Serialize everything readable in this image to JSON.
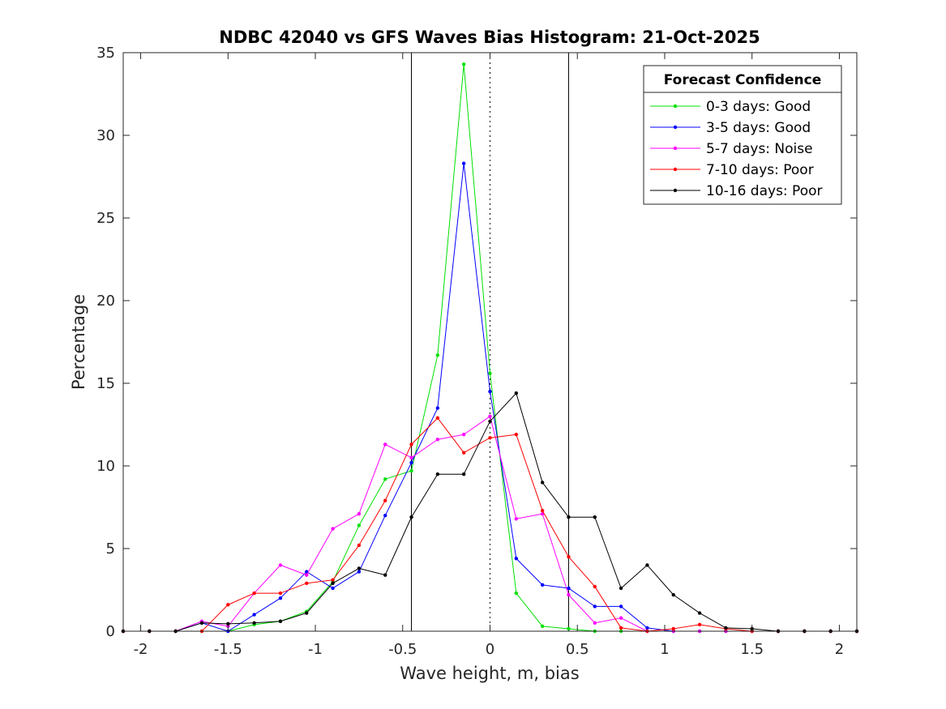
{
  "chart_data": {
    "type": "line",
    "title": "NDBC 42040 vs GFS Waves Bias Histogram: 21-Oct-2025",
    "xlabel": "Wave height, m, bias",
    "ylabel": "Percentage",
    "xlim": [
      -2.1,
      2.1
    ],
    "ylim": [
      0,
      35
    ],
    "xticks": [
      -2,
      -1.5,
      -1,
      -0.5,
      0,
      0.5,
      1,
      1.5,
      2
    ],
    "xtick_labels": [
      "-2",
      "-1.5",
      "-1",
      "-0.5",
      "0",
      "0.5",
      "1",
      "1.5",
      "2"
    ],
    "yticks": [
      0,
      5,
      10,
      15,
      20,
      25,
      30,
      35
    ],
    "ytick_labels": [
      "0",
      "5",
      "10",
      "15",
      "20",
      "25",
      "30",
      "35"
    ],
    "reference_lines": [
      {
        "x": -0.45,
        "style": "solid"
      },
      {
        "x": 0,
        "style": "dotted"
      },
      {
        "x": 0.45,
        "style": "solid"
      }
    ],
    "legend_title": "Forecast Confidence",
    "legend_position": "top-right",
    "x": [
      -2.1,
      -1.95,
      -1.8,
      -1.65,
      -1.5,
      -1.35,
      -1.2,
      -1.05,
      -0.9,
      -0.75,
      -0.6,
      -0.45,
      -0.3,
      -0.15,
      0,
      0.15,
      0.3,
      0.45,
      0.6,
      0.75,
      0.9,
      1.05,
      1.2,
      1.35,
      1.5,
      1.65,
      1.8,
      1.95,
      2.1
    ],
    "series": [
      {
        "name": "0-3 days: Good",
        "color": "#00e000",
        "values": [
          0,
          0,
          0,
          0,
          0,
          0.4,
          0.6,
          1.2,
          3.0,
          6.4,
          9.2,
          9.7,
          16.7,
          34.3,
          15.6,
          2.3,
          0.3,
          0.15,
          0,
          0,
          0,
          0,
          0,
          0,
          0,
          0,
          0,
          0,
          0
        ]
      },
      {
        "name": "3-5 days: Good",
        "color": "#0000ff",
        "values": [
          0,
          0,
          0,
          0.5,
          0,
          1.0,
          2.0,
          3.6,
          2.6,
          3.6,
          7.0,
          10.2,
          13.5,
          28.3,
          14.5,
          4.4,
          2.8,
          2.6,
          1.5,
          1.5,
          0.2,
          0,
          0,
          0,
          0,
          0,
          0,
          0,
          0
        ]
      },
      {
        "name": "5-7 days: Noise",
        "color": "#ff00ff",
        "values": [
          0,
          0,
          0,
          0.6,
          0.3,
          2.3,
          4.0,
          3.4,
          6.2,
          7.1,
          11.3,
          10.5,
          11.6,
          11.9,
          13.0,
          6.8,
          7.1,
          2.2,
          0.5,
          0.8,
          0,
          0,
          0,
          0,
          0,
          0,
          0,
          0,
          0
        ]
      },
      {
        "name": "7-10 days: Poor",
        "color": "#ff0000",
        "values": [
          0,
          0,
          0,
          0,
          1.6,
          2.3,
          2.3,
          2.9,
          3.1,
          5.2,
          7.9,
          11.3,
          12.9,
          10.8,
          11.7,
          11.9,
          7.3,
          4.5,
          2.7,
          0.2,
          0,
          0.15,
          0.4,
          0.15,
          0,
          0,
          0,
          0,
          0
        ]
      },
      {
        "name": "10-16 days: Poor",
        "color": "#000000",
        "values": [
          0,
          0,
          0,
          0.5,
          0.45,
          0.5,
          0.6,
          1.1,
          2.9,
          3.8,
          3.4,
          6.9,
          9.5,
          9.5,
          12.7,
          14.4,
          9.0,
          6.9,
          6.9,
          2.6,
          4.0,
          2.2,
          1.1,
          0.2,
          0.15,
          0,
          0,
          0,
          0
        ]
      }
    ]
  }
}
